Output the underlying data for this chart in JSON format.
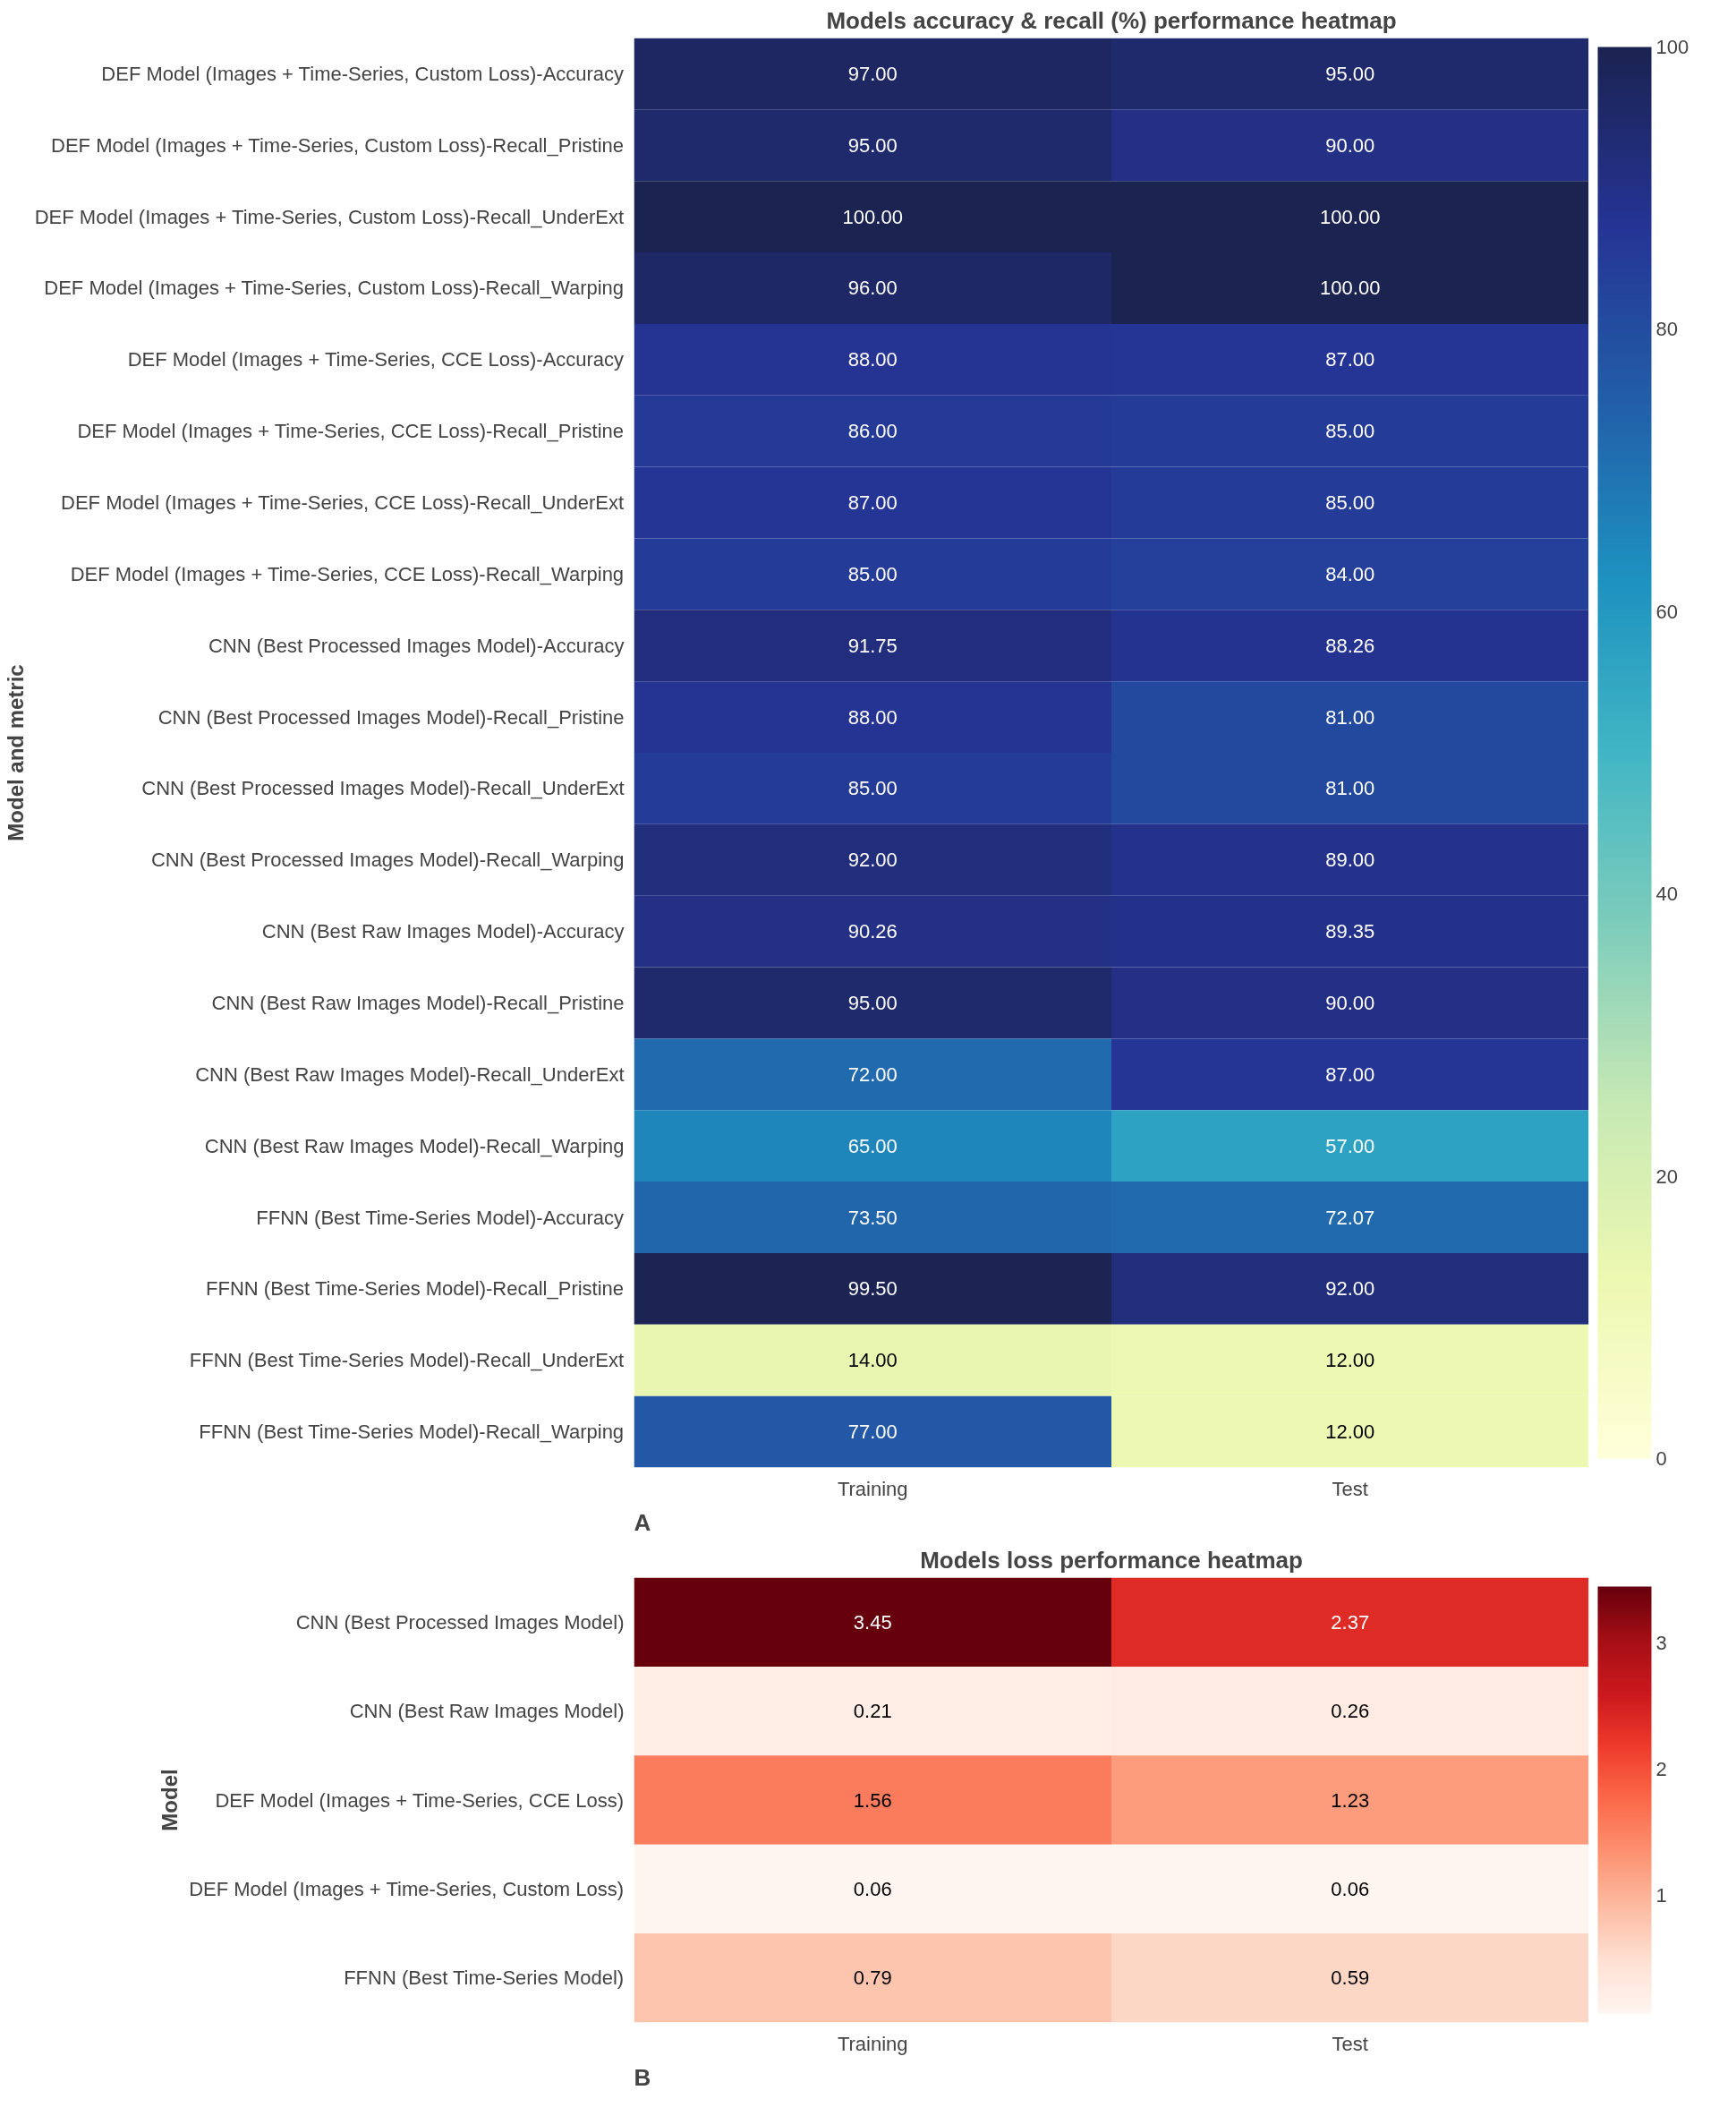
{
  "chart_data": [
    {
      "type": "heatmap",
      "title": "Models accuracy & recall (%) performance heatmap",
      "ylabel": "Model and metric",
      "categories": [
        "Training",
        "Test"
      ],
      "y_categories": [
        "DEF Model (Images + Time-Series, Custom Loss)-Accuracy",
        "DEF Model (Images + Time-Series, Custom Loss)-Recall_Pristine",
        "DEF Model (Images + Time-Series, Custom Loss)-Recall_UnderExt",
        "DEF Model (Images + Time-Series, Custom Loss)-Recall_Warping",
        "DEF Model (Images + Time-Series, CCE Loss)-Accuracy",
        "DEF Model (Images + Time-Series, CCE Loss)-Recall_Pristine",
        "DEF Model (Images + Time-Series, CCE Loss)-Recall_UnderExt",
        "DEF Model (Images + Time-Series, CCE Loss)-Recall_Warping",
        "CNN (Best Processed Images Model)-Accuracy",
        "CNN (Best Processed Images Model)-Recall_Pristine",
        "CNN (Best Processed Images Model)-Recall_UnderExt",
        "CNN (Best Processed Images Model)-Recall_Warping",
        "CNN (Best Raw Images Model)-Accuracy",
        "CNN (Best Raw Images Model)-Recall_Pristine",
        "CNN (Best Raw Images Model)-Recall_UnderExt",
        "CNN (Best Raw Images Model)-Recall_Warping",
        "FFNN (Best Time-Series Model)-Accuracy",
        "FFNN (Best Time-Series Model)-Recall_Pristine",
        "FFNN (Best Time-Series Model)-Recall_UnderExt",
        "FFNN (Best Time-Series Model)-Recall_Warping"
      ],
      "cells": [
        [
          97,
          95
        ],
        [
          95,
          90
        ],
        [
          100,
          100
        ],
        [
          96,
          100
        ],
        [
          88,
          87
        ],
        [
          86,
          85
        ],
        [
          87,
          85
        ],
        [
          85,
          84
        ],
        [
          91.75,
          88.26
        ],
        [
          88,
          81
        ],
        [
          85,
          81
        ],
        [
          92,
          89
        ],
        [
          90.26,
          89.35
        ],
        [
          95,
          90
        ],
        [
          72,
          87
        ],
        [
          65,
          57
        ],
        [
          73.5,
          72.07
        ],
        [
          99.5,
          92
        ],
        [
          14,
          12
        ],
        [
          77,
          12
        ]
      ],
      "cell_labels": [
        [
          "97.00",
          "95.00"
        ],
        [
          "95.00",
          "90.00"
        ],
        [
          "100.00",
          "100.00"
        ],
        [
          "96.00",
          "100.00"
        ],
        [
          "88.00",
          "87.00"
        ],
        [
          "86.00",
          "85.00"
        ],
        [
          "87.00",
          "85.00"
        ],
        [
          "85.00",
          "84.00"
        ],
        [
          "91.75",
          "88.26"
        ],
        [
          "88.00",
          "81.00"
        ],
        [
          "85.00",
          "81.00"
        ],
        [
          "92.00",
          "89.00"
        ],
        [
          "90.26",
          "89.35"
        ],
        [
          "95.00",
          "90.00"
        ],
        [
          "72.00",
          "87.00"
        ],
        [
          "65.00",
          "57.00"
        ],
        [
          "73.50",
          "72.07"
        ],
        [
          "99.50",
          "92.00"
        ],
        [
          "14.00",
          "12.00"
        ],
        [
          "77.00",
          "12.00"
        ]
      ],
      "colors": [
        "#ffffd9",
        "#edf8b1",
        "#c7e9b4",
        "#7fcdbb",
        "#41b6c4",
        "#1d91c0",
        "#225ea8",
        "#253494",
        "#1b2351"
      ],
      "clim": [
        0,
        100
      ],
      "cticks": [
        0,
        20,
        40,
        60,
        80,
        100
      ],
      "annotations": [
        "A"
      ]
    },
    {
      "type": "heatmap",
      "title": "Models loss performance heatmap",
      "ylabel": "Model",
      "categories": [
        "Training",
        "Test"
      ],
      "y_categories": [
        "CNN (Best Processed Images Model)",
        "CNN (Best Raw Images Model)",
        "DEF Model (Images + Time-Series, CCE Loss)",
        "DEF Model (Images + Time-Series, Custom Loss)",
        "FFNN (Best Time-Series Model)"
      ],
      "cells": [
        [
          3.45,
          2.37
        ],
        [
          0.21,
          0.26
        ],
        [
          1.56,
          1.23
        ],
        [
          0.06,
          0.06
        ],
        [
          0.79,
          0.59
        ]
      ],
      "cell_labels": [
        [
          "3.45",
          "2.37"
        ],
        [
          "0.21",
          "0.26"
        ],
        [
          "1.56",
          "1.23"
        ],
        [
          "0.06",
          "0.06"
        ],
        [
          "0.79",
          "0.59"
        ]
      ],
      "colors": [
        "#fff5f0",
        "#fee0d2",
        "#fcbba1",
        "#fc9272",
        "#fb6a4a",
        "#ef3b2c",
        "#cb181d",
        "#a50f15",
        "#67000d"
      ],
      "clim": [
        0.06,
        3.45
      ],
      "cticks": [
        1,
        2,
        3
      ],
      "annotations": [
        "B"
      ]
    }
  ]
}
